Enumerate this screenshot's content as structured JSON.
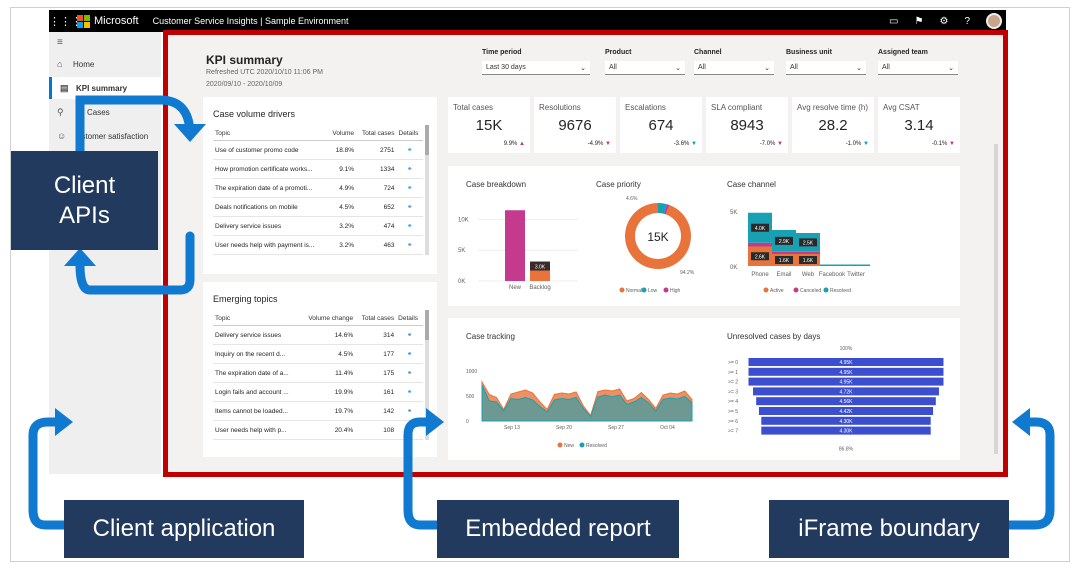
{
  "app": {
    "brand": "Microsoft",
    "title": "Customer Service Insights | Sample Environment",
    "icons": [
      "chat-icon",
      "flag-icon",
      "gear-icon",
      "help-icon"
    ]
  },
  "sidebar": {
    "items": [
      {
        "label": "Home",
        "icon": "home-icon"
      },
      {
        "label": "KPI summary",
        "icon": "dashboard-icon",
        "active": true
      },
      {
        "label": "Cases",
        "icon": "person-icon"
      },
      {
        "label": "ustomer satisfaction",
        "icon": "smile-icon"
      }
    ]
  },
  "report": {
    "title": "KPI summary",
    "refreshed": "Refreshed UTC 2020/10/10 11:06 PM",
    "range": "2020/09/10 - 2020/10/09",
    "filters": [
      {
        "label": "Time period",
        "value": "Last 30 days"
      },
      {
        "label": "Product",
        "value": "All"
      },
      {
        "label": "Channel",
        "value": "All"
      },
      {
        "label": "Business unit",
        "value": "All"
      },
      {
        "label": "Assigned team",
        "value": "All"
      }
    ],
    "tiles": [
      {
        "label": "Total cases",
        "value": "15K",
        "change": "9.9%",
        "dir": "▲"
      },
      {
        "label": "Resolutions",
        "value": "9676",
        "change": "-4.9%",
        "dir": "▼"
      },
      {
        "label": "Escalations",
        "value": "674",
        "change": "-3.6%",
        "dir": "▼"
      },
      {
        "label": "SLA compliant",
        "value": "8943",
        "change": "-7.0%",
        "dir": "▼"
      },
      {
        "label": "Avg resolve time (h)",
        "value": "28.2",
        "change": "-1.0%",
        "dir": "▼"
      },
      {
        "label": "Avg CSAT",
        "value": "3.14",
        "change": "-0.1%",
        "dir": "▼"
      }
    ],
    "drivers": {
      "title": "Case volume drivers",
      "headers": [
        "Topic",
        "Volume",
        "Total cases",
        "Details"
      ],
      "rows": [
        [
          "Use of customer promo code",
          "18.8%",
          "2751"
        ],
        [
          "How promotion certificate works...",
          "9.1%",
          "1334"
        ],
        [
          "The expiration date of a promoti...",
          "4.9%",
          "724"
        ],
        [
          "Deals notifications on mobile",
          "4.5%",
          "652"
        ],
        [
          "Delivery service issues",
          "3.2%",
          "474"
        ],
        [
          "User needs help with payment is...",
          "3.2%",
          "463"
        ]
      ]
    },
    "emerging": {
      "title": "Emerging topics",
      "headers": [
        "Topic",
        "Volume change",
        "Total cases",
        "Details"
      ],
      "rows": [
        [
          "Delivery service issues",
          "14.6%",
          "314"
        ],
        [
          "Inquiry on the recent d...",
          "4.5%",
          "177"
        ],
        [
          "The expiration date of a...",
          "11.4%",
          "175"
        ],
        [
          "Login fails and account ...",
          "19.9%",
          "161"
        ],
        [
          "Items cannot be loaded...",
          "19.7%",
          "142"
        ],
        [
          "User needs help with p...",
          "20.4%",
          "108"
        ]
      ]
    },
    "sections": {
      "breakdown": "Case breakdown",
      "priority": "Case priority",
      "channel": "Case channel",
      "tracking": "Case tracking",
      "unresolved": "Unresolved cases by days"
    }
  },
  "callouts": {
    "client_apis": "Client APIs",
    "client_app": "Client application",
    "embedded": "Embedded report",
    "iframe": "iFrame boundary"
  },
  "chart_data": [
    {
      "type": "bar",
      "title": "Case breakdown",
      "categories": [
        "New",
        "Backlog"
      ],
      "series": [
        {
          "values": [
            11.5,
            3.0
          ]
        }
      ],
      "bar_labels": [
        "",
        "3.0K"
      ],
      "yticks": [
        "10K",
        "5K",
        "0K"
      ],
      "ylim": [
        0,
        13
      ]
    },
    {
      "type": "pie",
      "title": "Case priority",
      "center_label": "15K",
      "slices": [
        {
          "label": "Normal",
          "value": 94.2
        },
        {
          "label": "Low",
          "value": 4.6
        },
        {
          "label": "High",
          "value": 1.2
        }
      ],
      "slice_labels": [
        "4.6%",
        "94.2%"
      ],
      "legend": [
        "Normal",
        "Low",
        "High"
      ],
      "colors": [
        "#e8743b",
        "#19a0b3",
        "#c43b8e"
      ]
    },
    {
      "type": "bar",
      "title": "Case channel",
      "categories": [
        "Phone",
        "Email",
        "Web",
        "Facebook",
        "Twitter"
      ],
      "stacked": true,
      "series": [
        {
          "name": "Active",
          "values": [
            2.6,
            1.6,
            1.6,
            0,
            0
          ]
        },
        {
          "name": "Canceled",
          "values": [
            0.5,
            0.3,
            0.3,
            0,
            0
          ]
        },
        {
          "name": "Resolved",
          "values": [
            4.0,
            2.9,
            2.5,
            0.15,
            0.12
          ]
        }
      ],
      "segment_labels": {
        "Active": [
          "2.6K",
          "1.6K",
          "1.6K",
          "",
          ""
        ],
        "Resolved": [
          "4.0K",
          "2.9K",
          "2.5K",
          "",
          ""
        ]
      },
      "yticks": [
        "5K",
        "0K"
      ],
      "legend": [
        "Active",
        "Canceled",
        "Resolved"
      ],
      "colors": [
        "#e8743b",
        "#c43b8e",
        "#19a0b3"
      ]
    },
    {
      "type": "area",
      "title": "Case tracking",
      "xticks": [
        "Sep 13",
        "Sep 20",
        "Sep 27",
        "Oct 04"
      ],
      "yticks": [
        "1000",
        "500",
        "0"
      ],
      "ylim": [
        0,
        1100
      ],
      "series": [
        {
          "name": "New",
          "values": [
            780,
            530,
            470,
            230,
            540,
            580,
            620,
            560,
            380,
            230,
            530,
            560,
            540,
            580,
            300,
            110,
            590,
            620,
            600,
            640,
            400,
            450,
            570,
            430,
            250,
            520,
            560,
            540,
            600,
            430
          ]
        },
        {
          "name": "Resolved",
          "values": [
            720,
            400,
            380,
            200,
            450,
            430,
            470,
            420,
            290,
            180,
            420,
            450,
            430,
            470,
            250,
            90,
            480,
            520,
            480,
            520,
            330,
            380,
            470,
            360,
            200,
            430,
            460,
            440,
            490,
            360
          ]
        }
      ],
      "legend": [
        "New",
        "Resolved"
      ],
      "colors": [
        "#e8743b",
        "#19a0b3"
      ]
    },
    {
      "type": "bar",
      "title": "Unresolved cases by days",
      "orientation": "funnel",
      "categories": [
        ">= 0",
        ">= 1",
        ">= 2",
        ">= 3",
        ">= 4",
        ">= 5",
        ">= 6",
        ">= 7"
      ],
      "values": [
        4.95,
        4.95,
        4.95,
        4.72,
        4.56,
        4.42,
        4.3,
        4.3
      ],
      "bar_labels": [
        "4.95K",
        "4.95K",
        "4.95K",
        "4.72K",
        "4.56K",
        "4.42K",
        "4.30K",
        "4.30K"
      ],
      "top_label": "100%",
      "bottom_label": "86.8%",
      "color": "#3b4ecf"
    }
  ]
}
